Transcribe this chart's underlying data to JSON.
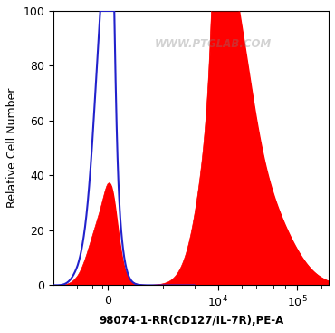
{
  "xlabel": "98074-1-RR(CD127/IL-7R),PE-A",
  "ylabel": "Relative Cell Number",
  "ylim": [
    0,
    100
  ],
  "yticks": [
    0,
    20,
    40,
    60,
    80,
    100
  ],
  "watermark": "WWW.PTGLAB.COM",
  "background_color": "#ffffff",
  "plot_bg_color": "#ffffff",
  "blue_color": "#2222cc",
  "red_color": "#ff0000",
  "linthresh": 1000,
  "linscale": 0.35
}
